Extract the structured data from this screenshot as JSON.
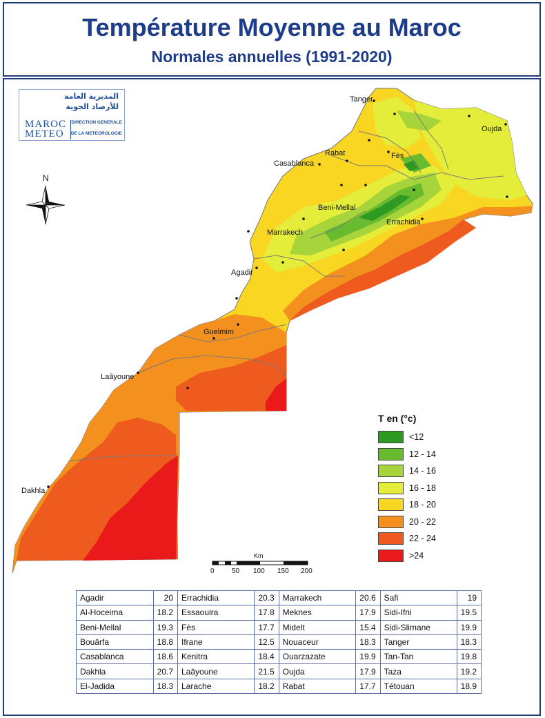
{
  "header": {
    "title": "Température Moyenne au Maroc",
    "subtitle": "Normales annuelles  (1991-2020)"
  },
  "logo": {
    "arabic_line1": "المديرية العامة",
    "arabic_line2": "للأرصاد الجوية",
    "french_line1": "DIRECTION GENERALE",
    "french_line2": "DE LA METEOROLOGIE",
    "brand_maroc": "MAROC",
    "brand_meteo": "METEO"
  },
  "compass": {
    "north_label": "N"
  },
  "cities": [
    "Tanger",
    "Oujda",
    "Rabat",
    "Fès",
    "Casablanca",
    "Beni-Mellal",
    "Errachidia",
    "Marrakech",
    "Agadir",
    "Guelmim",
    "Laâyoune",
    "Dakhla"
  ],
  "legend": {
    "title": "T en (°c)",
    "items": [
      {
        "label": "<12",
        "color": "#2f9a22"
      },
      {
        "label": "12 - 14",
        "color": "#68bb2e"
      },
      {
        "label": "14 - 16",
        "color": "#a7d43a"
      },
      {
        "label": "16 - 18",
        "color": "#e4ee3a"
      },
      {
        "label": "18 - 20",
        "color": "#f8d622"
      },
      {
        "label": "20 - 22",
        "color": "#f4901e"
      },
      {
        "label": "22 - 24",
        "color": "#ef5a1e"
      },
      {
        "label": ">24",
        "color": "#ea1a1a"
      }
    ]
  },
  "scale_bar": {
    "unit": "Km",
    "ticks": [
      "0",
      "50",
      "100",
      "150",
      "200"
    ]
  },
  "station_table": [
    [
      {
        "name": "Agadir",
        "value": "20"
      },
      {
        "name": "Errachidia",
        "value": "20.3"
      },
      {
        "name": "Marrakech",
        "value": "20.6"
      },
      {
        "name": "Safi",
        "value": "19"
      }
    ],
    [
      {
        "name": "Al-Hoceima",
        "value": "18.2"
      },
      {
        "name": "Essaouira",
        "value": "17.8"
      },
      {
        "name": "Meknes",
        "value": "17.9"
      },
      {
        "name": "Sidi-Ifni",
        "value": "19.5"
      }
    ],
    [
      {
        "name": "Beni-Mellal",
        "value": "19.3"
      },
      {
        "name": "Fès",
        "value": "17.7"
      },
      {
        "name": "Midelt",
        "value": "15.4"
      },
      {
        "name": "Sidi-Slimane",
        "value": "19.9"
      }
    ],
    [
      {
        "name": "Bouârfa",
        "value": "18.8"
      },
      {
        "name": "Ifrane",
        "value": "12.5"
      },
      {
        "name": "Nouaceur",
        "value": "18.3"
      },
      {
        "name": "Tanger",
        "value": "18.3"
      }
    ],
    [
      {
        "name": "Casablanca",
        "value": "18.6"
      },
      {
        "name": "Kenitra",
        "value": "18.4"
      },
      {
        "name": "Ouarzazate",
        "value": "19.9"
      },
      {
        "name": "Tan-Tan",
        "value": "19.8"
      }
    ],
    [
      {
        "name": "Dakhla",
        "value": "20.7"
      },
      {
        "name": "Laâyoune",
        "value": "21.5"
      },
      {
        "name": "Oujda",
        "value": "17.9"
      },
      {
        "name": "Taza",
        "value": "19.2"
      }
    ],
    [
      {
        "name": "El-Jadida",
        "value": "18.3"
      },
      {
        "name": "Larache",
        "value": "18.2"
      },
      {
        "name": "Rabat",
        "value": "17.7"
      },
      {
        "name": "Tétouan",
        "value": "18.9"
      }
    ]
  ]
}
